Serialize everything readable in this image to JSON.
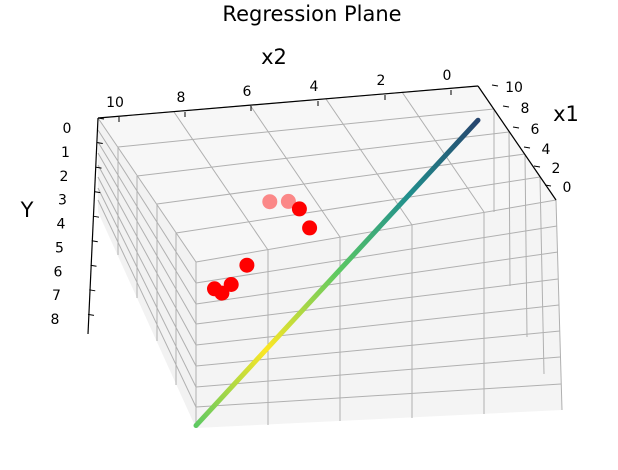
{
  "chart_data": {
    "type": "scatter",
    "projection": "3d",
    "title": "Regression Plane",
    "xlabel": "x1",
    "ylabel": "x2",
    "zlabel": "Y",
    "x_ticks": [
      "0",
      "2",
      "4",
      "6",
      "8",
      "10"
    ],
    "y_ticks": [
      "0",
      "2",
      "4",
      "6",
      "8",
      "10"
    ],
    "z_ticks": [
      "0",
      "1",
      "2",
      "3",
      "4",
      "5",
      "6",
      "7",
      "8"
    ],
    "xlim": [
      0,
      10
    ],
    "ylim": [
      0,
      10
    ],
    "zlim": [
      0,
      8
    ],
    "z_axis_inverted": true,
    "grid": true,
    "series": [
      {
        "kind": "points",
        "color": "#ff0000",
        "points": [
          {
            "x1": 4.0,
            "x2": 7.8,
            "Y": 4.9
          },
          {
            "x1": 4.4,
            "x2": 7.4,
            "Y": 4.5
          },
          {
            "x1": 4.6,
            "x2": 7.0,
            "Y": 4.6
          },
          {
            "x1": 4.8,
            "x2": 6.7,
            "Y": 5.6
          },
          {
            "x1": 2.8,
            "x2": 5.4,
            "Y": 5.9
          },
          {
            "x1": 2.3,
            "x2": 5.1,
            "Y": 6.6
          },
          {
            "x1": 2.0,
            "x2": 4.9,
            "Y": 6.8
          },
          {
            "x1": 1.9,
            "x2": 5.3,
            "Y": 7.0
          }
        ]
      },
      {
        "kind": "surface",
        "colormap": "viridis",
        "colors": [
          "#26456e",
          "#21908d",
          "#5ec962",
          "#fde725",
          "#5ec962"
        ],
        "edge": [
          {
            "x1": 10,
            "x2": 10,
            "Y": 2.9
          },
          {
            "x1": 0,
            "x2": 0,
            "Y": 7.9
          }
        ]
      }
    ]
  }
}
